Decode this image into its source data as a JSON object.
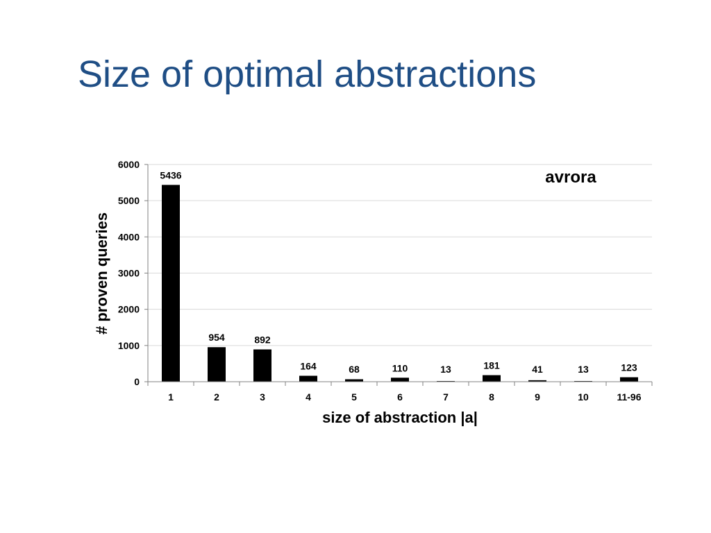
{
  "slide": {
    "title": "Size of optimal abstractions"
  },
  "chart_data": {
    "type": "bar",
    "title": "",
    "annotation": "avrora",
    "annotation_placement": "top-right",
    "xlabel": "size of abstraction |a|",
    "ylabel": "# proven queries",
    "categories": [
      "1",
      "2",
      "3",
      "4",
      "5",
      "6",
      "7",
      "8",
      "9",
      "10",
      "11-96"
    ],
    "values": [
      5436,
      954,
      892,
      164,
      68,
      110,
      13,
      181,
      41,
      13,
      123
    ],
    "data_labels": [
      "5436",
      "954",
      "892",
      "164",
      "68",
      "110",
      "13",
      "181",
      "41",
      "13",
      "123"
    ],
    "ylim": [
      0,
      6000
    ],
    "yticks": [
      0,
      1000,
      2000,
      3000,
      4000,
      5000,
      6000
    ],
    "ytick_labels": [
      "0",
      "1000",
      "2000",
      "3000",
      "4000",
      "5000",
      "6000"
    ],
    "grid": true,
    "legend": false,
    "bar_color": "#000000",
    "grid_color": "#d9d9d9",
    "axis_color": "#808080"
  }
}
